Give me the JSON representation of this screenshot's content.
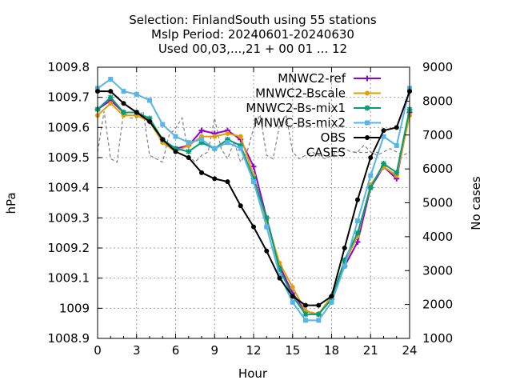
{
  "title_lines": [
    "Selection: FinlandSouth using    55 stations",
    "Mslp   Period: 20240601-20240630",
    "Used 00,03,...,21 + 00 01 ... 12"
  ],
  "chart_data": {
    "type": "line",
    "xlabel": "Hour",
    "ylabel": "hPa",
    "y2label": "No cases",
    "xlim": [
      0,
      24
    ],
    "ylim": [
      1008.9,
      1009.8
    ],
    "y2lim": [
      1000,
      9000
    ],
    "grid": true,
    "legend_position": "top-right",
    "x_ticks": [
      0,
      3,
      6,
      9,
      12,
      15,
      18,
      21,
      24
    ],
    "y_ticks": [
      "1008.9",
      "1009",
      "1009.1",
      "1009.2",
      "1009.3",
      "1009.4",
      "1009.5",
      "1009.6",
      "1009.7",
      "1009.8"
    ],
    "y_tick_values": [
      1008.9,
      1009.0,
      1009.1,
      1009.2,
      1009.3,
      1009.4,
      1009.5,
      1009.6,
      1009.7,
      1009.8
    ],
    "y2_ticks": [
      "1000",
      "2000",
      "3000",
      "4000",
      "5000",
      "6000",
      "7000",
      "8000",
      "9000"
    ],
    "y2_tick_values": [
      1000,
      2000,
      3000,
      4000,
      5000,
      6000,
      7000,
      8000,
      9000
    ],
    "x": [
      0,
      1,
      2,
      3,
      4,
      5,
      6,
      7,
      8,
      9,
      10,
      11,
      12,
      13,
      14,
      15,
      16,
      17,
      18,
      19,
      20,
      21,
      22,
      23,
      24
    ],
    "series": [
      {
        "name": "MNWC2-ref",
        "color": "#9400d3",
        "marker": "plus",
        "values": [
          1009.66,
          1009.69,
          1009.65,
          1009.65,
          1009.62,
          1009.56,
          1009.53,
          1009.54,
          1009.59,
          1009.58,
          1009.59,
          1009.56,
          1009.47,
          1009.3,
          1009.14,
          1009.05,
          1008.99,
          1008.98,
          1009.04,
          1009.14,
          1009.22,
          1009.4,
          1009.47,
          1009.43,
          1009.65
        ]
      },
      {
        "name": "MNWC2-Bscale",
        "color": "#e69f00",
        "marker": "dot",
        "values": [
          1009.64,
          1009.68,
          1009.64,
          1009.64,
          1009.62,
          1009.55,
          1009.52,
          1009.54,
          1009.57,
          1009.57,
          1009.58,
          1009.57,
          1009.44,
          1009.29,
          1009.15,
          1009.07,
          1008.99,
          1008.98,
          1009.04,
          1009.15,
          1009.24,
          1009.41,
          1009.47,
          1009.44,
          1009.64
        ]
      },
      {
        "name": "MNWC2-Bs-mix1",
        "color": "#009e73",
        "marker": "star",
        "values": [
          1009.66,
          1009.7,
          1009.65,
          1009.65,
          1009.63,
          1009.56,
          1009.53,
          1009.52,
          1009.55,
          1009.53,
          1009.56,
          1009.54,
          1009.43,
          1009.3,
          1009.13,
          1009.04,
          1008.98,
          1008.98,
          1009.03,
          1009.16,
          1009.25,
          1009.4,
          1009.48,
          1009.45,
          1009.66
        ]
      },
      {
        "name": "MNWC-Bs-mix2",
        "color": "#56b4e9",
        "marker": "square",
        "values": [
          1009.73,
          1009.76,
          1009.72,
          1009.71,
          1009.69,
          1009.61,
          1009.57,
          1009.55,
          1009.56,
          1009.53,
          1009.55,
          1009.53,
          1009.42,
          1009.27,
          1009.11,
          1009.02,
          1008.96,
          1008.96,
          1009.02,
          1009.14,
          1009.29,
          1009.44,
          1009.57,
          1009.54,
          1009.73
        ]
      },
      {
        "name": "OBS",
        "color": "#000000",
        "marker": "dot",
        "values": [
          1009.72,
          1009.72,
          1009.68,
          1009.65,
          1009.62,
          1009.56,
          1009.52,
          1009.5,
          1009.45,
          1009.43,
          1009.42,
          1009.34,
          1009.27,
          1009.19,
          1009.1,
          1009.04,
          1009.01,
          1009.01,
          1009.04,
          1009.2,
          1009.36,
          1009.5,
          1009.59,
          1009.6,
          1009.72
        ]
      },
      {
        "name": "CASES",
        "color": "#808080",
        "marker": "none",
        "dashed": true,
        "axis": "y2",
        "x": [
          0,
          0.5,
          1,
          1.5,
          2,
          2.5,
          3,
          3.5,
          4,
          4.5,
          5,
          5.5,
          6,
          6.5,
          7,
          7.5,
          8,
          8.5,
          9,
          9.5,
          10,
          10.5,
          11,
          11.5,
          12,
          12.5,
          13,
          13.5,
          14,
          14.5,
          15,
          15.5,
          16,
          16.5,
          17,
          17.5,
          18,
          18.5,
          19,
          19.5,
          20,
          20.5,
          21,
          21.5,
          22,
          22.5,
          23,
          23.5,
          24
        ],
        "values": [
          6500,
          7700,
          6300,
          6200,
          7700,
          7500,
          7500,
          7700,
          6400,
          6300,
          6200,
          7000,
          7200,
          7500,
          6400,
          6200,
          6400,
          6500,
          7500,
          6600,
          6300,
          6800,
          6200,
          6500,
          7200,
          7600,
          6400,
          6300,
          7300,
          7600,
          6500,
          6300,
          6400,
          6500,
          6400,
          6300,
          6400,
          6500,
          6600,
          6500,
          6500,
          6700,
          6500,
          6400,
          6500,
          6600,
          6500,
          6400,
          6500
        ]
      }
    ]
  }
}
